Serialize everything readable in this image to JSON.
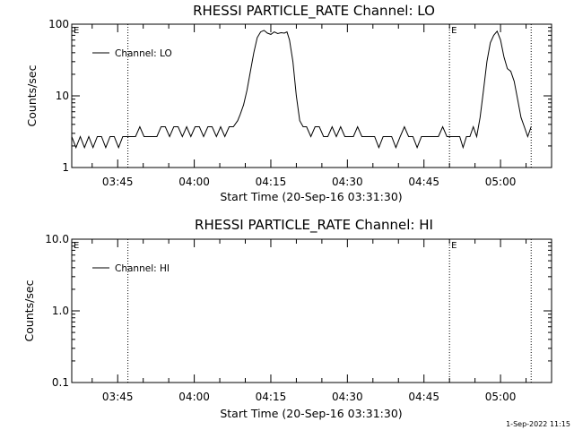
{
  "timestamp": "1-Sep-2022 11:15",
  "chart_data": [
    {
      "type": "line",
      "title": "RHESSI PARTICLE_RATE Channel: LO",
      "xlabel": "Start Time (20-Sep-16 03:31:30)",
      "ylabel": "Counts/sec",
      "yscale": "log",
      "ylim": [
        1,
        100
      ],
      "yticks": [
        1,
        10,
        100
      ],
      "ytick_labels": [
        "1",
        "10",
        "100"
      ],
      "xlim": [
        "03:36",
        "05:10"
      ],
      "xticks": [
        "03:45",
        "04:00",
        "04:15",
        "04:30",
        "04:45",
        "05:00"
      ],
      "legend_location": "upper-left",
      "event_lines": [
        "03:47",
        "04:50",
        "05:06"
      ],
      "event_flags": [
        {
          "label": "E",
          "x": "03:36"
        },
        {
          "label": "E",
          "x": "04:50"
        }
      ],
      "series": [
        {
          "name": "Channel: LO",
          "x": [
            "03:36:00",
            "03:36:50",
            "03:37:40",
            "03:38:30",
            "03:39:20",
            "03:40:10",
            "03:41:00",
            "03:41:50",
            "03:42:40",
            "03:43:30",
            "03:44:20",
            "03:45:10",
            "03:46:00",
            "03:46:50",
            "03:47:40",
            "03:48:30",
            "03:49:20",
            "03:50:10",
            "03:51:00",
            "03:51:50",
            "03:52:40",
            "03:53:30",
            "03:54:20",
            "03:55:10",
            "03:56:00",
            "03:56:50",
            "03:57:40",
            "03:58:30",
            "03:59:20",
            "04:00:10",
            "04:01:00",
            "04:01:50",
            "04:02:40",
            "04:03:30",
            "04:04:20",
            "04:05:10",
            "04:06:00",
            "04:06:50",
            "04:07:40",
            "04:08:30",
            "04:09:00",
            "04:09:40",
            "04:10:20",
            "04:11:00",
            "04:11:40",
            "04:12:20",
            "04:13:00",
            "04:13:40",
            "04:14:20",
            "04:15:00",
            "04:15:40",
            "04:16:20",
            "04:17:00",
            "04:17:40",
            "04:18:10",
            "04:18:40",
            "04:19:20",
            "04:20:00",
            "04:20:40",
            "04:21:20",
            "04:22:00",
            "04:22:50",
            "04:23:40",
            "04:24:30",
            "04:25:20",
            "04:26:10",
            "04:27:00",
            "04:27:50",
            "04:28:40",
            "04:29:30",
            "04:30:20",
            "04:31:10",
            "04:32:00",
            "04:32:50",
            "04:33:40",
            "04:34:30",
            "04:35:20",
            "04:36:10",
            "04:37:00",
            "04:37:50",
            "04:38:40",
            "04:39:30",
            "04:40:20",
            "04:41:10",
            "04:42:00",
            "04:42:50",
            "04:43:40",
            "04:44:30",
            "04:45:20",
            "04:46:10",
            "04:47:00",
            "04:47:50",
            "04:48:40",
            "04:49:30",
            "04:50:00",
            "04:50:40",
            "04:51:20",
            "04:52:00",
            "04:52:40",
            "04:53:20",
            "04:54:00",
            "04:54:40",
            "04:55:20",
            "04:56:00",
            "04:56:40",
            "04:57:20",
            "04:58:00",
            "04:58:40",
            "04:59:20",
            "05:00:00",
            "05:00:40",
            "05:01:20",
            "05:02:00",
            "05:02:40",
            "05:03:20",
            "05:04:00",
            "05:04:40",
            "05:05:20",
            "05:06:00"
          ],
          "y": [
            2.7,
            1.9,
            2.7,
            1.9,
            2.7,
            1.9,
            2.7,
            2.7,
            1.9,
            2.7,
            2.7,
            1.9,
            2.7,
            2.7,
            2.7,
            2.7,
            3.7,
            2.7,
            2.7,
            2.7,
            2.7,
            3.7,
            3.7,
            2.7,
            3.7,
            3.7,
            2.7,
            3.7,
            2.7,
            3.7,
            3.7,
            2.7,
            3.7,
            3.7,
            2.7,
            3.7,
            2.7,
            3.7,
            3.7,
            4.5,
            5.5,
            7.5,
            12,
            22,
            40,
            65,
            78,
            82,
            75,
            72,
            78,
            74,
            76,
            75,
            78,
            60,
            30,
            10,
            4.5,
            3.7,
            3.7,
            2.7,
            3.7,
            3.7,
            2.7,
            2.7,
            3.7,
            2.7,
            3.7,
            2.7,
            2.7,
            2.7,
            3.7,
            2.7,
            2.7,
            2.7,
            2.7,
            1.9,
            2.7,
            2.7,
            2.7,
            1.9,
            2.7,
            3.7,
            2.7,
            2.7,
            1.9,
            2.7,
            2.7,
            2.7,
            2.7,
            2.7,
            3.7,
            2.7,
            2.7,
            2.7,
            2.7,
            2.7,
            1.9,
            2.7,
            2.7,
            3.7,
            2.7,
            5,
            12,
            30,
            55,
            70,
            80,
            60,
            35,
            24,
            22,
            16,
            9,
            5,
            3.7,
            2.7,
            3.7
          ]
        }
      ]
    },
    {
      "type": "line",
      "title": "RHESSI PARTICLE_RATE Channel: HI",
      "xlabel": "Start Time (20-Sep-16 03:31:30)",
      "ylabel": "Counts/sec",
      "yscale": "log",
      "ylim": [
        0.1,
        10
      ],
      "yticks": [
        0.1,
        1,
        10
      ],
      "ytick_labels": [
        "0.1",
        "1.0",
        "10.0"
      ],
      "xlim": [
        "03:36",
        "05:10"
      ],
      "xticks": [
        "03:45",
        "04:00",
        "04:15",
        "04:30",
        "04:45",
        "05:00"
      ],
      "legend_location": "upper-left",
      "event_lines": [
        "03:47",
        "04:50",
        "05:06"
      ],
      "event_flags": [
        {
          "label": "E",
          "x": "03:36"
        },
        {
          "label": "E",
          "x": "04:50"
        }
      ],
      "series": [
        {
          "name": "Channel: HI",
          "x": [],
          "y": []
        }
      ]
    }
  ]
}
